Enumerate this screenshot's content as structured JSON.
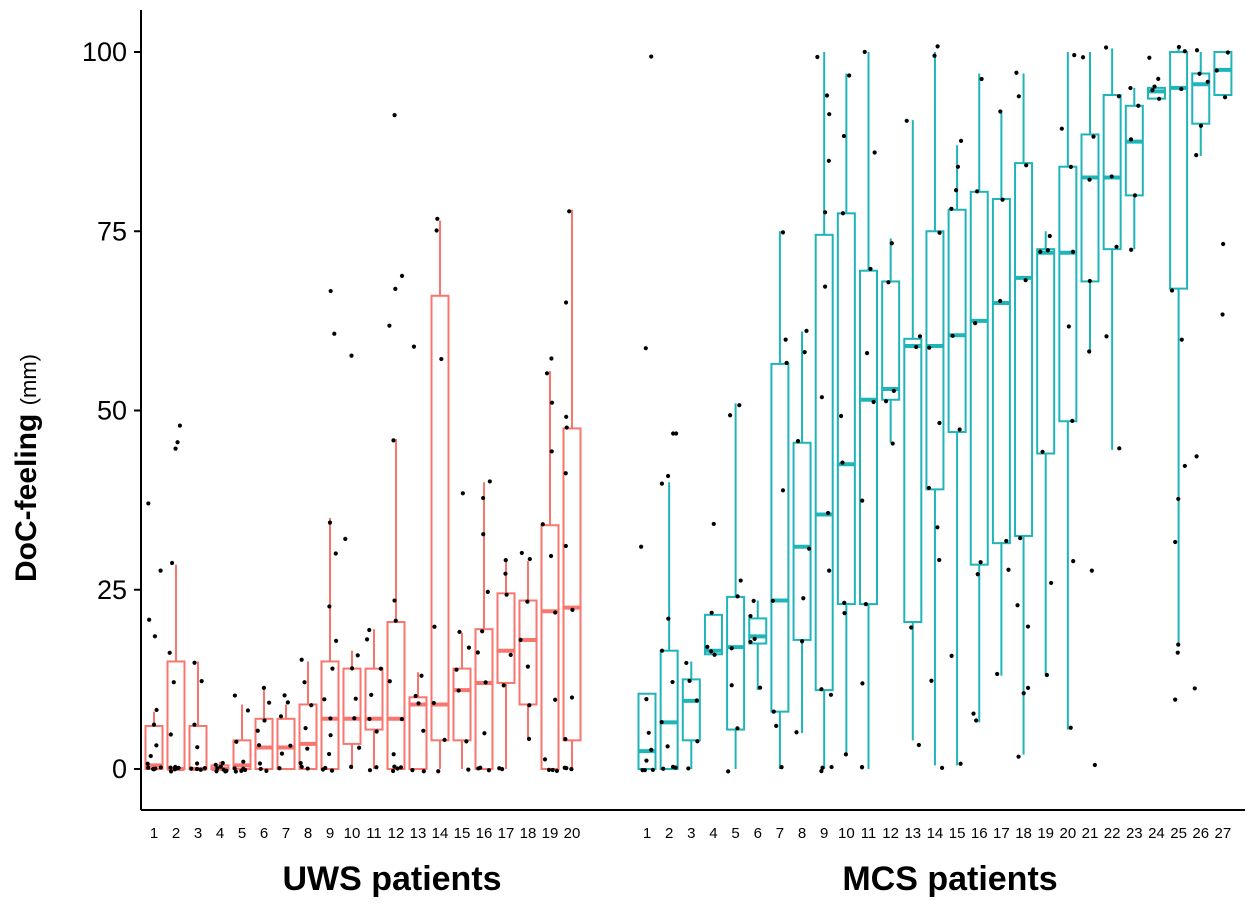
{
  "chart_data": {
    "type": "boxplot",
    "ylabel_bold": "DoC-feeling",
    "ylabel_unit": "(mm)",
    "ylim": [
      0,
      100
    ],
    "yticks": [
      "0",
      "25",
      "50",
      "75",
      "100"
    ],
    "grid": false,
    "legend": "none",
    "colors": {
      "UWS": "#F8766D",
      "MCS": "#1FB5B8",
      "points": "#000000"
    },
    "groups": [
      {
        "label": "UWS patients",
        "key": "UWS",
        "patients": [
          {
            "id": "1",
            "wlo": 0,
            "q1": 0,
            "med": 0.5,
            "q3": 6,
            "whi": 8,
            "points": [
              0,
              0,
              0,
              1,
              0,
              2,
              3,
              6,
              8,
              18.5,
              20.5,
              28,
              37,
              0
            ]
          },
          {
            "id": "2",
            "wlo": 0,
            "q1": 0,
            "med": 0,
            "q3": 15,
            "whi": 28.5,
            "points": [
              0,
              0,
              0,
              0,
              0,
              5,
              12,
              16.5,
              29,
              44.5,
              45.5,
              48,
              0,
              0
            ]
          },
          {
            "id": "3",
            "wlo": 0,
            "q1": 0,
            "med": 0,
            "q3": 6,
            "whi": 15,
            "points": [
              0,
              0,
              0,
              0,
              1,
              3,
              6,
              12,
              15
            ]
          },
          {
            "id": "4",
            "wlo": 0,
            "q1": 0,
            "med": 0,
            "q3": 0.5,
            "whi": 1,
            "points": [
              0,
              0,
              0,
              0,
              0,
              0.5,
              1,
              0
            ]
          },
          {
            "id": "5",
            "wlo": 0,
            "q1": 0,
            "med": 0.5,
            "q3": 4,
            "whi": 9,
            "points": [
              0,
              0,
              0,
              0,
              1,
              4,
              8,
              10,
              0
            ]
          },
          {
            "id": "6",
            "wlo": 0,
            "q1": 0,
            "med": 3,
            "q3": 7,
            "whi": 11,
            "points": [
              0,
              1,
              3,
              5,
              7,
              9,
              11,
              0
            ]
          },
          {
            "id": "7",
            "wlo": 0,
            "q1": 0,
            "med": 3,
            "q3": 7,
            "whi": 9,
            "points": [
              0,
              2,
              3,
              7,
              9,
              10
            ]
          },
          {
            "id": "8",
            "wlo": 0,
            "q1": 0,
            "med": 3.5,
            "q3": 9,
            "whi": 15,
            "points": [
              0,
              1,
              3,
              6,
              9,
              12,
              15.5,
              0
            ]
          },
          {
            "id": "9",
            "wlo": 0,
            "q1": 0,
            "med": 7,
            "q3": 15,
            "whi": 35,
            "points": [
              0,
              0,
              2,
              5,
              7,
              10,
              14,
              18,
              23,
              30,
              34.5,
              61,
              67,
              0
            ]
          },
          {
            "id": "10",
            "wlo": 0,
            "q1": 3.5,
            "med": 7,
            "q3": 14,
            "whi": 16.5,
            "points": [
              0,
              3,
              7,
              10,
              14,
              16,
              32,
              58
            ]
          },
          {
            "id": "11",
            "wlo": 0,
            "q1": 5.5,
            "med": 7,
            "q3": 14,
            "whi": 19.5,
            "points": [
              0,
              5,
              7,
              10,
              14,
              18,
              19.5,
              0
            ]
          },
          {
            "id": "12",
            "wlo": 0,
            "q1": 0,
            "med": 7,
            "q3": 20.5,
            "whi": 46,
            "points": [
              0,
              0,
              0,
              2,
              7,
              12,
              20.5,
              23.5,
              45.5,
              62,
              67,
              68.5,
              91,
              0
            ]
          },
          {
            "id": "13",
            "wlo": 0,
            "q1": 0,
            "med": 9,
            "q3": 10,
            "whi": 13.5,
            "points": [
              0,
              5,
              9,
              10,
              13,
              59,
              0
            ]
          },
          {
            "id": "14",
            "wlo": 0,
            "q1": 4,
            "med": 9,
            "q3": 66,
            "whi": 76.5,
            "points": [
              0,
              4,
              9,
              20,
              57.5,
              75,
              76.5
            ]
          },
          {
            "id": "15",
            "wlo": 0,
            "q1": 4,
            "med": 11,
            "q3": 14,
            "whi": 19,
            "points": [
              0,
              4,
              11,
              14,
              17,
              19,
              38.5
            ]
          },
          {
            "id": "16",
            "wlo": 0,
            "q1": 0,
            "med": 12,
            "q3": 19.5,
            "whi": 40,
            "points": [
              0,
              0,
              5,
              12,
              16,
              19.5,
              25,
              33,
              37.5,
              40,
              0
            ]
          },
          {
            "id": "17",
            "wlo": 0,
            "q1": 12,
            "med": 16.5,
            "q3": 24.5,
            "whi": 29,
            "points": [
              0,
              12,
              16,
              24,
              27,
              29,
              0
            ]
          },
          {
            "id": "18",
            "wlo": 4,
            "q1": 9,
            "med": 18,
            "q3": 23.5,
            "whi": 29,
            "points": [
              4,
              9,
              14,
              18,
              23,
              29,
              30
            ]
          },
          {
            "id": "19",
            "wlo": 0,
            "q1": 0,
            "med": 22,
            "q3": 34,
            "whi": 55.5,
            "points": [
              0,
              0,
              1,
              10,
              22,
              30,
              34,
              44,
              51,
              55.5,
              57,
              0
            ]
          },
          {
            "id": "20",
            "wlo": 0,
            "q1": 4,
            "med": 22.5,
            "q3": 47.5,
            "whi": 78,
            "points": [
              0,
              0,
              4,
              10,
              22.5,
              31,
              41,
              47.5,
              49,
              65,
              78,
              0
            ]
          }
        ]
      },
      {
        "label": "MCS patients",
        "key": "MCS",
        "patients": [
          {
            "id": "1",
            "wlo": 0,
            "q1": 0,
            "med": 2.5,
            "q3": 10.5,
            "whi": 10.5,
            "points": [
              0,
              0,
              1,
              2.5,
              5,
              10,
              31,
              58.5,
              99.5,
              0
            ]
          },
          {
            "id": "2",
            "wlo": 0,
            "q1": 0,
            "med": 6.5,
            "q3": 16.5,
            "whi": 40,
            "points": [
              0,
              0,
              3,
              6.5,
              12,
              16.5,
              21,
              40,
              41,
              46.5,
              47,
              0
            ]
          },
          {
            "id": "3",
            "wlo": 0,
            "q1": 4,
            "med": 9.5,
            "q3": 12.5,
            "whi": 15,
            "points": [
              0,
              4,
              9.5,
              12.5,
              15
            ]
          },
          {
            "id": "4",
            "wlo": 16,
            "q1": 16,
            "med": 16.5,
            "q3": 21.5,
            "whi": 21.5,
            "points": [
              16,
              16.5,
              17,
              21.5,
              34
            ]
          },
          {
            "id": "5",
            "wlo": 0,
            "q1": 5.5,
            "med": 17,
            "q3": 24,
            "whi": 51,
            "points": [
              0,
              5.5,
              12,
              17,
              24,
              26,
              49,
              51
            ]
          },
          {
            "id": "6",
            "wlo": 11,
            "q1": 17.5,
            "med": 18.5,
            "q3": 21,
            "whi": 23.5,
            "points": [
              11,
              17.5,
              18.5,
              21,
              23.5
            ]
          },
          {
            "id": "7",
            "wlo": 0,
            "q1": 8,
            "med": 23.5,
            "q3": 56.5,
            "whi": 75,
            "points": [
              0,
              6,
              8,
              23.5,
              39,
              56.5,
              60,
              74.5
            ]
          },
          {
            "id": "8",
            "wlo": 5,
            "q1": 18,
            "med": 31,
            "q3": 45.5,
            "whi": 61,
            "points": [
              5,
              18,
              24,
              31,
              45.5,
              58,
              61
            ]
          },
          {
            "id": "9",
            "wlo": 0,
            "q1": 11,
            "med": 35.5,
            "q3": 74.5,
            "whi": 100,
            "points": [
              0,
              0,
              10,
              11,
              28,
              35.5,
              52,
              67.5,
              77.5,
              85,
              91.5,
              94,
              99.5,
              0
            ]
          },
          {
            "id": "10",
            "wlo": 2,
            "q1": 23,
            "med": 42.5,
            "q3": 77.5,
            "whi": 97,
            "points": [
              2,
              21.5,
              23,
              42.5,
              49,
              77.5,
              88,
              96.5
            ]
          },
          {
            "id": "11",
            "wlo": 0,
            "q1": 23,
            "med": 51.5,
            "q3": 69.5,
            "whi": 100,
            "points": [
              0,
              12,
              23,
              37.5,
              51.5,
              58,
              69.5,
              86,
              100,
              0
            ]
          },
          {
            "id": "12",
            "wlo": 45.5,
            "q1": 51.5,
            "med": 53,
            "q3": 68,
            "whi": 74,
            "points": [
              45.5,
              51.5,
              53,
              68,
              73.5
            ]
          },
          {
            "id": "13",
            "wlo": 4,
            "q1": 20.5,
            "med": 59,
            "q3": 60,
            "whi": 90.5,
            "points": [
              3.5,
              20,
              59,
              60,
              90.5
            ]
          },
          {
            "id": "14",
            "wlo": 0.5,
            "q1": 39,
            "med": 59,
            "q3": 75,
            "whi": 100,
            "points": [
              0.5,
              12,
              29,
              34,
              39,
              48,
              59,
              75,
              99.5,
              100.5
            ]
          },
          {
            "id": "15",
            "wlo": 0.5,
            "q1": 47,
            "med": 60.5,
            "q3": 78,
            "whi": 87,
            "points": [
              0.5,
              16,
              47,
              60.5,
              78,
              81,
              84,
              87.5
            ]
          },
          {
            "id": "16",
            "wlo": 6.5,
            "q1": 28.5,
            "med": 62.5,
            "q3": 80.5,
            "whi": 97,
            "points": [
              6.5,
              7.5,
              27,
              28.5,
              62.5,
              80.5,
              96.5
            ]
          },
          {
            "id": "17",
            "wlo": 13,
            "q1": 31.5,
            "med": 65,
            "q3": 79.5,
            "whi": 91.5,
            "points": [
              13,
              27.5,
              31.5,
              65,
              79.5,
              92
            ]
          },
          {
            "id": "18",
            "wlo": 2,
            "q1": 32.5,
            "med": 68.5,
            "q3": 84.5,
            "whi": 97,
            "points": [
              1.5,
              10.5,
              11.5,
              20,
              23,
              32.5,
              68.5,
              84.5,
              94,
              97
            ]
          },
          {
            "id": "19",
            "wlo": 13,
            "q1": 44,
            "med": 72,
            "q3": 72.5,
            "whi": 75,
            "points": [
              13,
              26,
              44,
              72,
              72.5,
              74.5
            ]
          },
          {
            "id": "20",
            "wlo": 5.5,
            "q1": 48.5,
            "med": 72,
            "q3": 84,
            "whi": 100,
            "points": [
              5.5,
              29,
              48.5,
              61.5,
              72,
              84,
              89.5,
              99.5
            ]
          },
          {
            "id": "21",
            "wlo": 58,
            "q1": 68,
            "med": 82.5,
            "q3": 88.5,
            "whi": 100,
            "points": [
              0.5,
              27.5,
              58,
              68,
              82.5,
              88.5,
              99.5
            ]
          },
          {
            "id": "22",
            "wlo": 44.5,
            "q1": 72.5,
            "med": 82.5,
            "q3": 94,
            "whi": 100.5,
            "points": [
              44.5,
              60,
              72.5,
              82.5,
              94,
              100.5
            ]
          },
          {
            "id": "23",
            "wlo": 72.5,
            "q1": 80,
            "med": 87.5,
            "q3": 92.5,
            "whi": 95,
            "points": [
              72.5,
              80,
              87.5,
              92.5,
              95
            ]
          },
          {
            "id": "24",
            "wlo": 93.5,
            "q1": 93.5,
            "med": 94.5,
            "q3": 95,
            "whi": 95,
            "points": [
              93.5,
              94.5,
              95,
              96,
              99
            ]
          },
          {
            "id": "25",
            "wlo": 17.5,
            "q1": 67,
            "med": 95,
            "q3": 100,
            "whi": 100.5,
            "points": [
              10,
              16,
              17.5,
              32,
              38,
              42,
              60,
              67,
              95,
              100,
              100.5
            ]
          },
          {
            "id": "26",
            "wlo": 85.5,
            "q1": 90,
            "med": 95.5,
            "q3": 97,
            "whi": 100,
            "points": [
              11.5,
              43.5,
              85.5,
              90,
              95.5,
              97,
              100
            ]
          },
          {
            "id": "27",
            "wlo": 94,
            "q1": 94,
            "med": 97.5,
            "q3": 100,
            "whi": 100,
            "points": [
              63.5,
              73,
              94,
              97.5,
              100
            ]
          }
        ]
      }
    ]
  }
}
